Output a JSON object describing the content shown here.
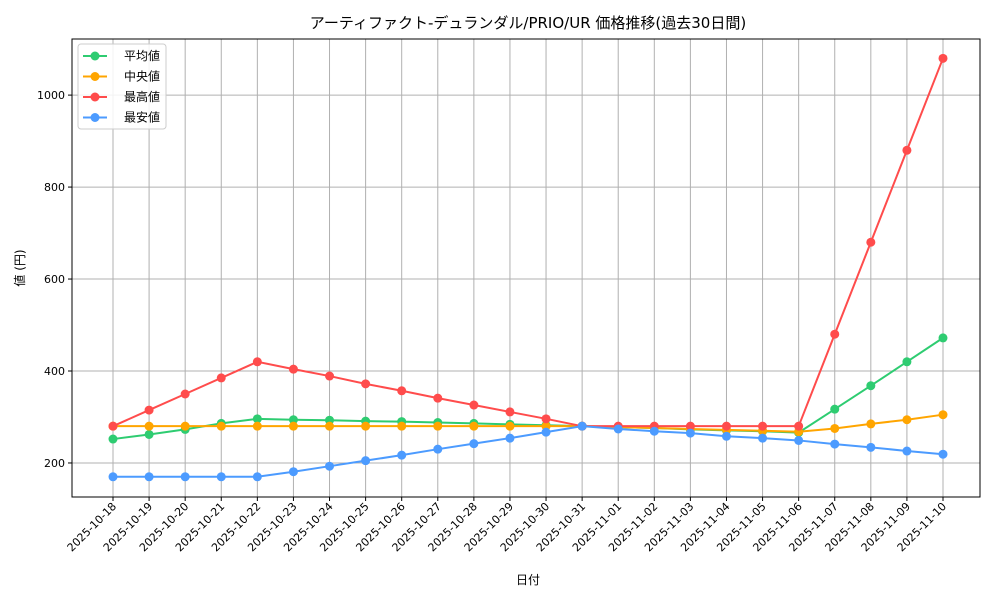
{
  "chart_data": {
    "type": "line",
    "title": "アーティファクト-デュランダル/PRIO/UR 価格推移(過去30日間)",
    "xlabel": "日付",
    "ylabel": "値 (円)",
    "ylim": [
      126,
      1122
    ],
    "yticks": [
      200,
      400,
      600,
      800,
      1000
    ],
    "grid": true,
    "legend_position": "top-left",
    "categories": [
      "2025-10-18",
      "2025-10-19",
      "2025-10-20",
      "2025-10-21",
      "2025-10-22",
      "2025-10-23",
      "2025-10-24",
      "2025-10-25",
      "2025-10-26",
      "2025-10-27",
      "2025-10-28",
      "2025-10-29",
      "2025-10-30",
      "2025-10-31",
      "2025-11-01",
      "2025-11-02",
      "2025-11-03",
      "2025-11-04",
      "2025-11-05",
      "2025-11-06",
      "2025-11-07",
      "2025-11-08",
      "2025-11-09",
      "2025-11-10"
    ],
    "series": [
      {
        "name": "平均値",
        "color": "#2ecc71",
        "values": [
          252,
          262,
          273,
          286,
          296,
          294,
          293,
          291,
          290,
          288,
          286,
          284,
          282,
          280,
          278,
          276,
          273,
          271,
          269,
          266,
          317,
          368,
          420,
          472
        ]
      },
      {
        "name": "中央値",
        "color": "#ffa500",
        "values": [
          280,
          280,
          280,
          280,
          280,
          280,
          280,
          280,
          280,
          280,
          280,
          280,
          280,
          280,
          278,
          276,
          274,
          272,
          270,
          268,
          275,
          285,
          294,
          305
        ]
      },
      {
        "name": "最高値",
        "color": "#ff4c4c",
        "values": [
          280,
          315,
          350,
          385,
          420,
          404,
          389,
          372,
          357,
          341,
          326,
          311,
          296,
          280,
          280,
          280,
          280,
          280,
          280,
          280,
          480,
          680,
          880,
          1080
        ]
      },
      {
        "name": "最安値",
        "color": "#4c9bff",
        "values": [
          170,
          170,
          170,
          170,
          170,
          181,
          193,
          205,
          217,
          230,
          242,
          254,
          267,
          280,
          274,
          269,
          265,
          258,
          254,
          249,
          241,
          234,
          226,
          219
        ]
      }
    ]
  }
}
